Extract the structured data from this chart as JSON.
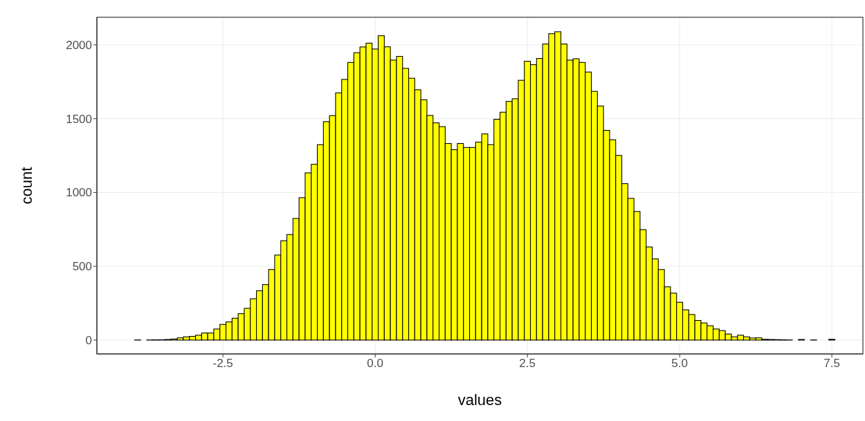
{
  "chart_data": {
    "type": "histogram",
    "xlabel": "values",
    "ylabel": "count",
    "color": "#ffff00",
    "bins": [
      -3.95,
      -3.85,
      -3.75,
      -3.65,
      -3.55,
      -3.45,
      -3.35,
      -3.25,
      -3.15,
      -3.05,
      -2.95,
      -2.85,
      -2.75,
      -2.65,
      -2.55,
      -2.45,
      -2.35,
      -2.25,
      -2.15,
      -2.05,
      -1.95,
      -1.85,
      -1.75,
      -1.65,
      -1.55,
      -1.45,
      -1.35,
      -1.25,
      -1.15,
      -1.05,
      -0.95,
      -0.85,
      -0.75,
      -0.65,
      -0.55,
      -0.45,
      -0.35,
      -0.25,
      -0.15,
      -0.05,
      0.05,
      0.15,
      0.25,
      0.35,
      0.45,
      0.55,
      0.65,
      0.75,
      0.85,
      0.95,
      1.05,
      1.15,
      1.25,
      1.35,
      1.45,
      1.55,
      1.65,
      1.75,
      1.85,
      1.95,
      2.05,
      2.15,
      2.25,
      2.35,
      2.45,
      2.55,
      2.65,
      2.75,
      2.85,
      2.95,
      3.05,
      3.15,
      3.25,
      3.35,
      3.45,
      3.55,
      3.65,
      3.75,
      3.85,
      3.95,
      4.05,
      4.15,
      4.25,
      4.35,
      4.45,
      4.55,
      4.65,
      4.75,
      4.85,
      4.95,
      5.05,
      5.15,
      5.25,
      5.35,
      5.45,
      5.55,
      5.65,
      5.75,
      5.85,
      5.95,
      6.05,
      6.15,
      6.25,
      6.35,
      6.45,
      6.55,
      6.65,
      6.75,
      6.85,
      6.95,
      7.05,
      7.15,
      7.25,
      7.35,
      7.45,
      7.55
    ],
    "values": [
      1,
      0,
      1,
      2,
      2,
      4,
      7,
      15,
      22,
      25,
      33,
      48,
      48,
      75,
      106,
      123,
      148,
      179,
      215,
      280,
      334,
      376,
      478,
      576,
      673,
      715,
      824,
      965,
      1133,
      1191,
      1324,
      1480,
      1521,
      1675,
      1766,
      1881,
      1947,
      1986,
      2012,
      1972,
      2062,
      1987,
      1897,
      1922,
      1841,
      1774,
      1696,
      1628,
      1522,
      1472,
      1446,
      1332,
      1290,
      1332,
      1305,
      1305,
      1341,
      1397,
      1324,
      1496,
      1544,
      1617,
      1635,
      1760,
      1889,
      1866,
      1908,
      2006,
      2076,
      2089,
      2006,
      1897,
      1906,
      1881,
      1816,
      1685,
      1586,
      1421,
      1357,
      1251,
      1060,
      960,
      871,
      748,
      631,
      550,
      478,
      361,
      318,
      256,
      205,
      173,
      133,
      116,
      97,
      75,
      64,
      41,
      22,
      33,
      22,
      14,
      15,
      5,
      4,
      3,
      2,
      1,
      0,
      4,
      0,
      1,
      0,
      0,
      5
    ],
    "xlim": [
      -4.57,
      8.01
    ],
    "xticks": [
      {
        "value": -2.5,
        "label": "-2.5"
      },
      {
        "value": 0,
        "label": "0.0"
      },
      {
        "value": 2.5,
        "label": "2.5"
      },
      {
        "value": 5,
        "label": "5.0"
      },
      {
        "value": 7.5,
        "label": "7.5"
      }
    ],
    "ylim": [
      -94,
      2187
    ],
    "yticks": [
      0,
      500,
      1000,
      1500,
      2000
    ],
    "grid": true
  }
}
